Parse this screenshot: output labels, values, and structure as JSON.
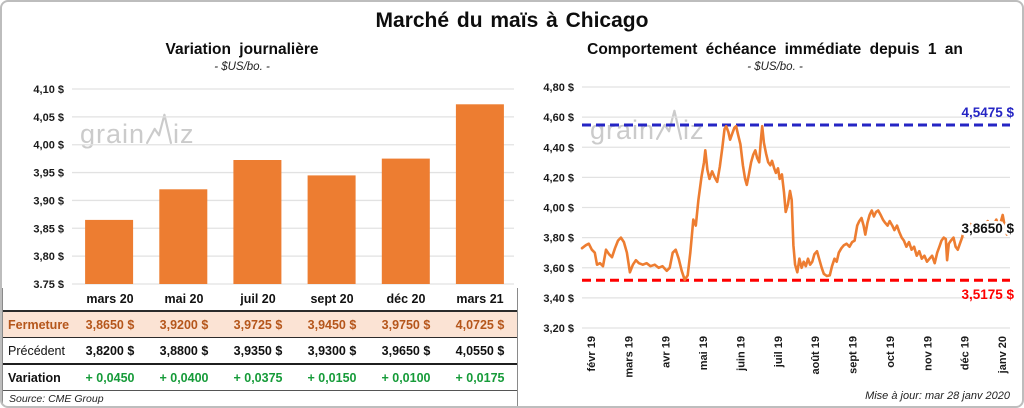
{
  "title": "Marché du maïs à Chicago",
  "watermark": {
    "part1": "grain",
    "part2": "iz"
  },
  "colors": {
    "bar_orange": "#ED7D31",
    "line_orange": "#ED7D31",
    "resistance_blue": "#2525C4",
    "support_red": "#FE0000",
    "variation_green": "#169B39",
    "close_row_bg": "#FBE3D4",
    "close_row_text": "#B5561B"
  },
  "chart_data": [
    {
      "type": "bar",
      "title": "Variation journalière",
      "subtitle": "- $US/bo. -",
      "categories": [
        "mars 20",
        "mai 20",
        "juil 20",
        "sept 20",
        "déc 20",
        "mars 21"
      ],
      "values": [
        3.865,
        3.92,
        3.9725,
        3.945,
        3.975,
        4.0725
      ],
      "ylim": [
        3.75,
        4.1
      ],
      "ytick_step": 0.05,
      "ytick_format": "0,00 $",
      "bar_color": "#ED7D31",
      "grid": true,
      "legend": "none"
    },
    {
      "type": "line",
      "title": "Comportement échéance immédiate depuis 1 an",
      "subtitle": "- $US/bo. -",
      "x_labels": [
        "févr 19",
        "mars 19",
        "avr 19",
        "mai 19",
        "juin 19",
        "juil 19",
        "août 19",
        "sept 19",
        "oct 19",
        "nov 19",
        "déc 19",
        "janv 20"
      ],
      "ylim": [
        3.2,
        4.8
      ],
      "ytick_step": 0.2,
      "line_color": "#ED7D31",
      "grid": true,
      "legend": "none",
      "hlines": [
        {
          "value": 4.5475,
          "label": "4,5475 $",
          "color": "#2525C4",
          "style": "dashed"
        },
        {
          "value": 3.5175,
          "label": "3,5175 $",
          "color": "#FE0000",
          "style": "dashed"
        }
      ],
      "last_label": {
        "value": 3.865,
        "text": "3,8650 $",
        "color": "#111111"
      },
      "series": [
        {
          "name": "échéance immédiate",
          "points": [
            [
              0,
              3.73
            ],
            [
              0.009,
              3.75
            ],
            [
              0.016,
              3.76
            ],
            [
              0.023,
              3.72
            ],
            [
              0.03,
              3.7
            ],
            [
              0.035,
              3.62
            ],
            [
              0.042,
              3.63
            ],
            [
              0.049,
              3.61
            ],
            [
              0.056,
              3.72
            ],
            [
              0.063,
              3.69
            ],
            [
              0.07,
              3.67
            ],
            [
              0.077,
              3.73
            ],
            [
              0.084,
              3.78
            ],
            [
              0.091,
              3.8
            ],
            [
              0.098,
              3.77
            ],
            [
              0.105,
              3.7
            ],
            [
              0.112,
              3.57
            ],
            [
              0.119,
              3.62
            ],
            [
              0.126,
              3.65
            ],
            [
              0.133,
              3.63
            ],
            [
              0.142,
              3.62
            ],
            [
              0.151,
              3.63
            ],
            [
              0.16,
              3.61
            ],
            [
              0.17,
              3.62
            ],
            [
              0.179,
              3.6
            ],
            [
              0.188,
              3.61
            ],
            [
              0.198,
              3.58
            ],
            [
              0.205,
              3.6
            ],
            [
              0.212,
              3.7
            ],
            [
              0.219,
              3.72
            ],
            [
              0.226,
              3.66
            ],
            [
              0.233,
              3.58
            ],
            [
              0.24,
              3.52
            ],
            [
              0.247,
              3.55
            ],
            [
              0.253,
              3.7
            ],
            [
              0.26,
              3.92
            ],
            [
              0.266,
              3.88
            ],
            [
              0.272,
              4.05
            ],
            [
              0.279,
              4.2
            ],
            [
              0.285,
              4.3
            ],
            [
              0.288,
              4.38
            ],
            [
              0.293,
              4.25
            ],
            [
              0.298,
              4.19
            ],
            [
              0.304,
              4.24
            ],
            [
              0.31,
              4.2
            ],
            [
              0.316,
              4.17
            ],
            [
              0.322,
              4.27
            ],
            [
              0.328,
              4.4
            ],
            [
              0.333,
              4.52
            ],
            [
              0.337,
              4.54
            ],
            [
              0.342,
              4.5
            ],
            [
              0.346,
              4.45
            ],
            [
              0.351,
              4.49
            ],
            [
              0.356,
              4.53
            ],
            [
              0.36,
              4.54
            ],
            [
              0.365,
              4.48
            ],
            [
              0.37,
              4.42
            ],
            [
              0.376,
              4.28
            ],
            [
              0.381,
              4.19
            ],
            [
              0.385,
              4.15
            ],
            [
              0.39,
              4.22
            ],
            [
              0.395,
              4.3
            ],
            [
              0.4,
              4.35
            ],
            [
              0.405,
              4.38
            ],
            [
              0.409,
              4.33
            ],
            [
              0.414,
              4.3
            ],
            [
              0.418,
              4.45
            ],
            [
              0.421,
              4.54
            ],
            [
              0.425,
              4.43
            ],
            [
              0.43,
              4.36
            ],
            [
              0.435,
              4.3
            ],
            [
              0.44,
              4.28
            ],
            [
              0.444,
              4.31
            ],
            [
              0.449,
              4.26
            ],
            [
              0.453,
              4.23
            ],
            [
              0.458,
              4.26
            ],
            [
              0.462,
              4.19
            ],
            [
              0.467,
              4.22
            ],
            [
              0.472,
              4.1
            ],
            [
              0.476,
              3.97
            ],
            [
              0.481,
              4.02
            ],
            [
              0.486,
              4.11
            ],
            [
              0.49,
              4.05
            ],
            [
              0.494,
              3.75
            ],
            [
              0.498,
              3.62
            ],
            [
              0.503,
              3.57
            ],
            [
              0.508,
              3.66
            ],
            [
              0.513,
              3.6
            ],
            [
              0.518,
              3.64
            ],
            [
              0.523,
              3.61
            ],
            [
              0.528,
              3.66
            ],
            [
              0.533,
              3.62
            ],
            [
              0.538,
              3.64
            ],
            [
              0.543,
              3.69
            ],
            [
              0.549,
              3.71
            ],
            [
              0.554,
              3.66
            ],
            [
              0.56,
              3.6
            ],
            [
              0.565,
              3.56
            ],
            [
              0.572,
              3.545
            ],
            [
              0.579,
              3.55
            ],
            [
              0.584,
              3.61
            ],
            [
              0.59,
              3.66
            ],
            [
              0.595,
              3.64
            ],
            [
              0.6,
              3.7
            ],
            [
              0.606,
              3.73
            ],
            [
              0.612,
              3.75
            ],
            [
              0.618,
              3.76
            ],
            [
              0.625,
              3.74
            ],
            [
              0.631,
              3.77
            ],
            [
              0.637,
              3.78
            ],
            [
              0.643,
              3.88
            ],
            [
              0.648,
              3.91
            ],
            [
              0.653,
              3.93
            ],
            [
              0.658,
              3.88
            ],
            [
              0.662,
              3.82
            ],
            [
              0.667,
              3.9
            ],
            [
              0.672,
              3.95
            ],
            [
              0.677,
              3.98
            ],
            [
              0.682,
              3.94
            ],
            [
              0.687,
              3.97
            ],
            [
              0.692,
              3.98
            ],
            [
              0.698,
              3.95
            ],
            [
              0.703,
              3.92
            ],
            [
              0.708,
              3.9
            ],
            [
              0.714,
              3.88
            ],
            [
              0.719,
              3.91
            ],
            [
              0.725,
              3.88
            ],
            [
              0.73,
              3.85
            ],
            [
              0.736,
              3.88
            ],
            [
              0.741,
              3.84
            ],
            [
              0.747,
              3.8
            ],
            [
              0.752,
              3.78
            ],
            [
              0.758,
              3.74
            ],
            [
              0.764,
              3.77
            ],
            [
              0.77,
              3.72
            ],
            [
              0.776,
              3.74
            ],
            [
              0.782,
              3.68
            ],
            [
              0.788,
              3.71
            ],
            [
              0.794,
              3.66
            ],
            [
              0.8,
              3.68
            ],
            [
              0.806,
              3.64
            ],
            [
              0.812,
              3.66
            ],
            [
              0.818,
              3.68
            ],
            [
              0.824,
              3.63
            ],
            [
              0.83,
              3.7
            ],
            [
              0.835,
              3.74
            ],
            [
              0.84,
              3.78
            ],
            [
              0.845,
              3.8
            ],
            [
              0.85,
              3.79
            ],
            [
              0.853,
              3.65
            ],
            [
              0.857,
              3.76
            ],
            [
              0.862,
              3.78
            ],
            [
              0.868,
              3.8
            ],
            [
              0.873,
              3.74
            ],
            [
              0.878,
              3.72
            ],
            [
              0.883,
              3.76
            ],
            [
              0.888,
              3.8
            ],
            [
              0.893,
              3.86
            ],
            [
              0.898,
              3.88
            ],
            [
              0.903,
              3.87
            ],
            [
              0.908,
              3.89
            ],
            [
              0.913,
              3.88
            ],
            [
              0.918,
              3.9
            ],
            [
              0.923,
              3.88
            ],
            [
              0.928,
              3.89
            ],
            [
              0.933,
              3.88
            ],
            [
              0.938,
              3.9
            ],
            [
              0.943,
              3.89
            ],
            [
              0.948,
              3.91
            ],
            [
              0.953,
              3.88
            ],
            [
              0.958,
              3.9
            ],
            [
              0.963,
              3.89
            ],
            [
              0.968,
              3.92
            ],
            [
              0.973,
              3.88
            ],
            [
              0.978,
              3.9
            ],
            [
              0.983,
              3.95
            ],
            [
              0.988,
              3.87
            ],
            [
              0.993,
              3.82
            ],
            [
              0.997,
              3.88
            ],
            [
              1,
              3.865
            ]
          ]
        }
      ]
    }
  ],
  "table": {
    "rows": [
      {
        "label": "Fermeture",
        "style": "close",
        "values": [
          "3,8650 $",
          "3,9200 $",
          "3,9725 $",
          "3,9450 $",
          "3,9750 $",
          "4,0725 $"
        ]
      },
      {
        "label": "Précédent",
        "style": "previous",
        "values": [
          "3,8200 $",
          "3,8800 $",
          "3,9350 $",
          "3,9300 $",
          "3,9650 $",
          "4,0550 $"
        ]
      },
      {
        "label": "Variation",
        "style": "variation",
        "values": [
          "+ 0,0450",
          "+ 0,0400",
          "+ 0,0375",
          "+ 0,0150",
          "+ 0,0100",
          "+ 0,0175"
        ]
      }
    ],
    "source": "Source: CME Group"
  },
  "update_note": "Mise à jour: mar 28 janv 2020"
}
